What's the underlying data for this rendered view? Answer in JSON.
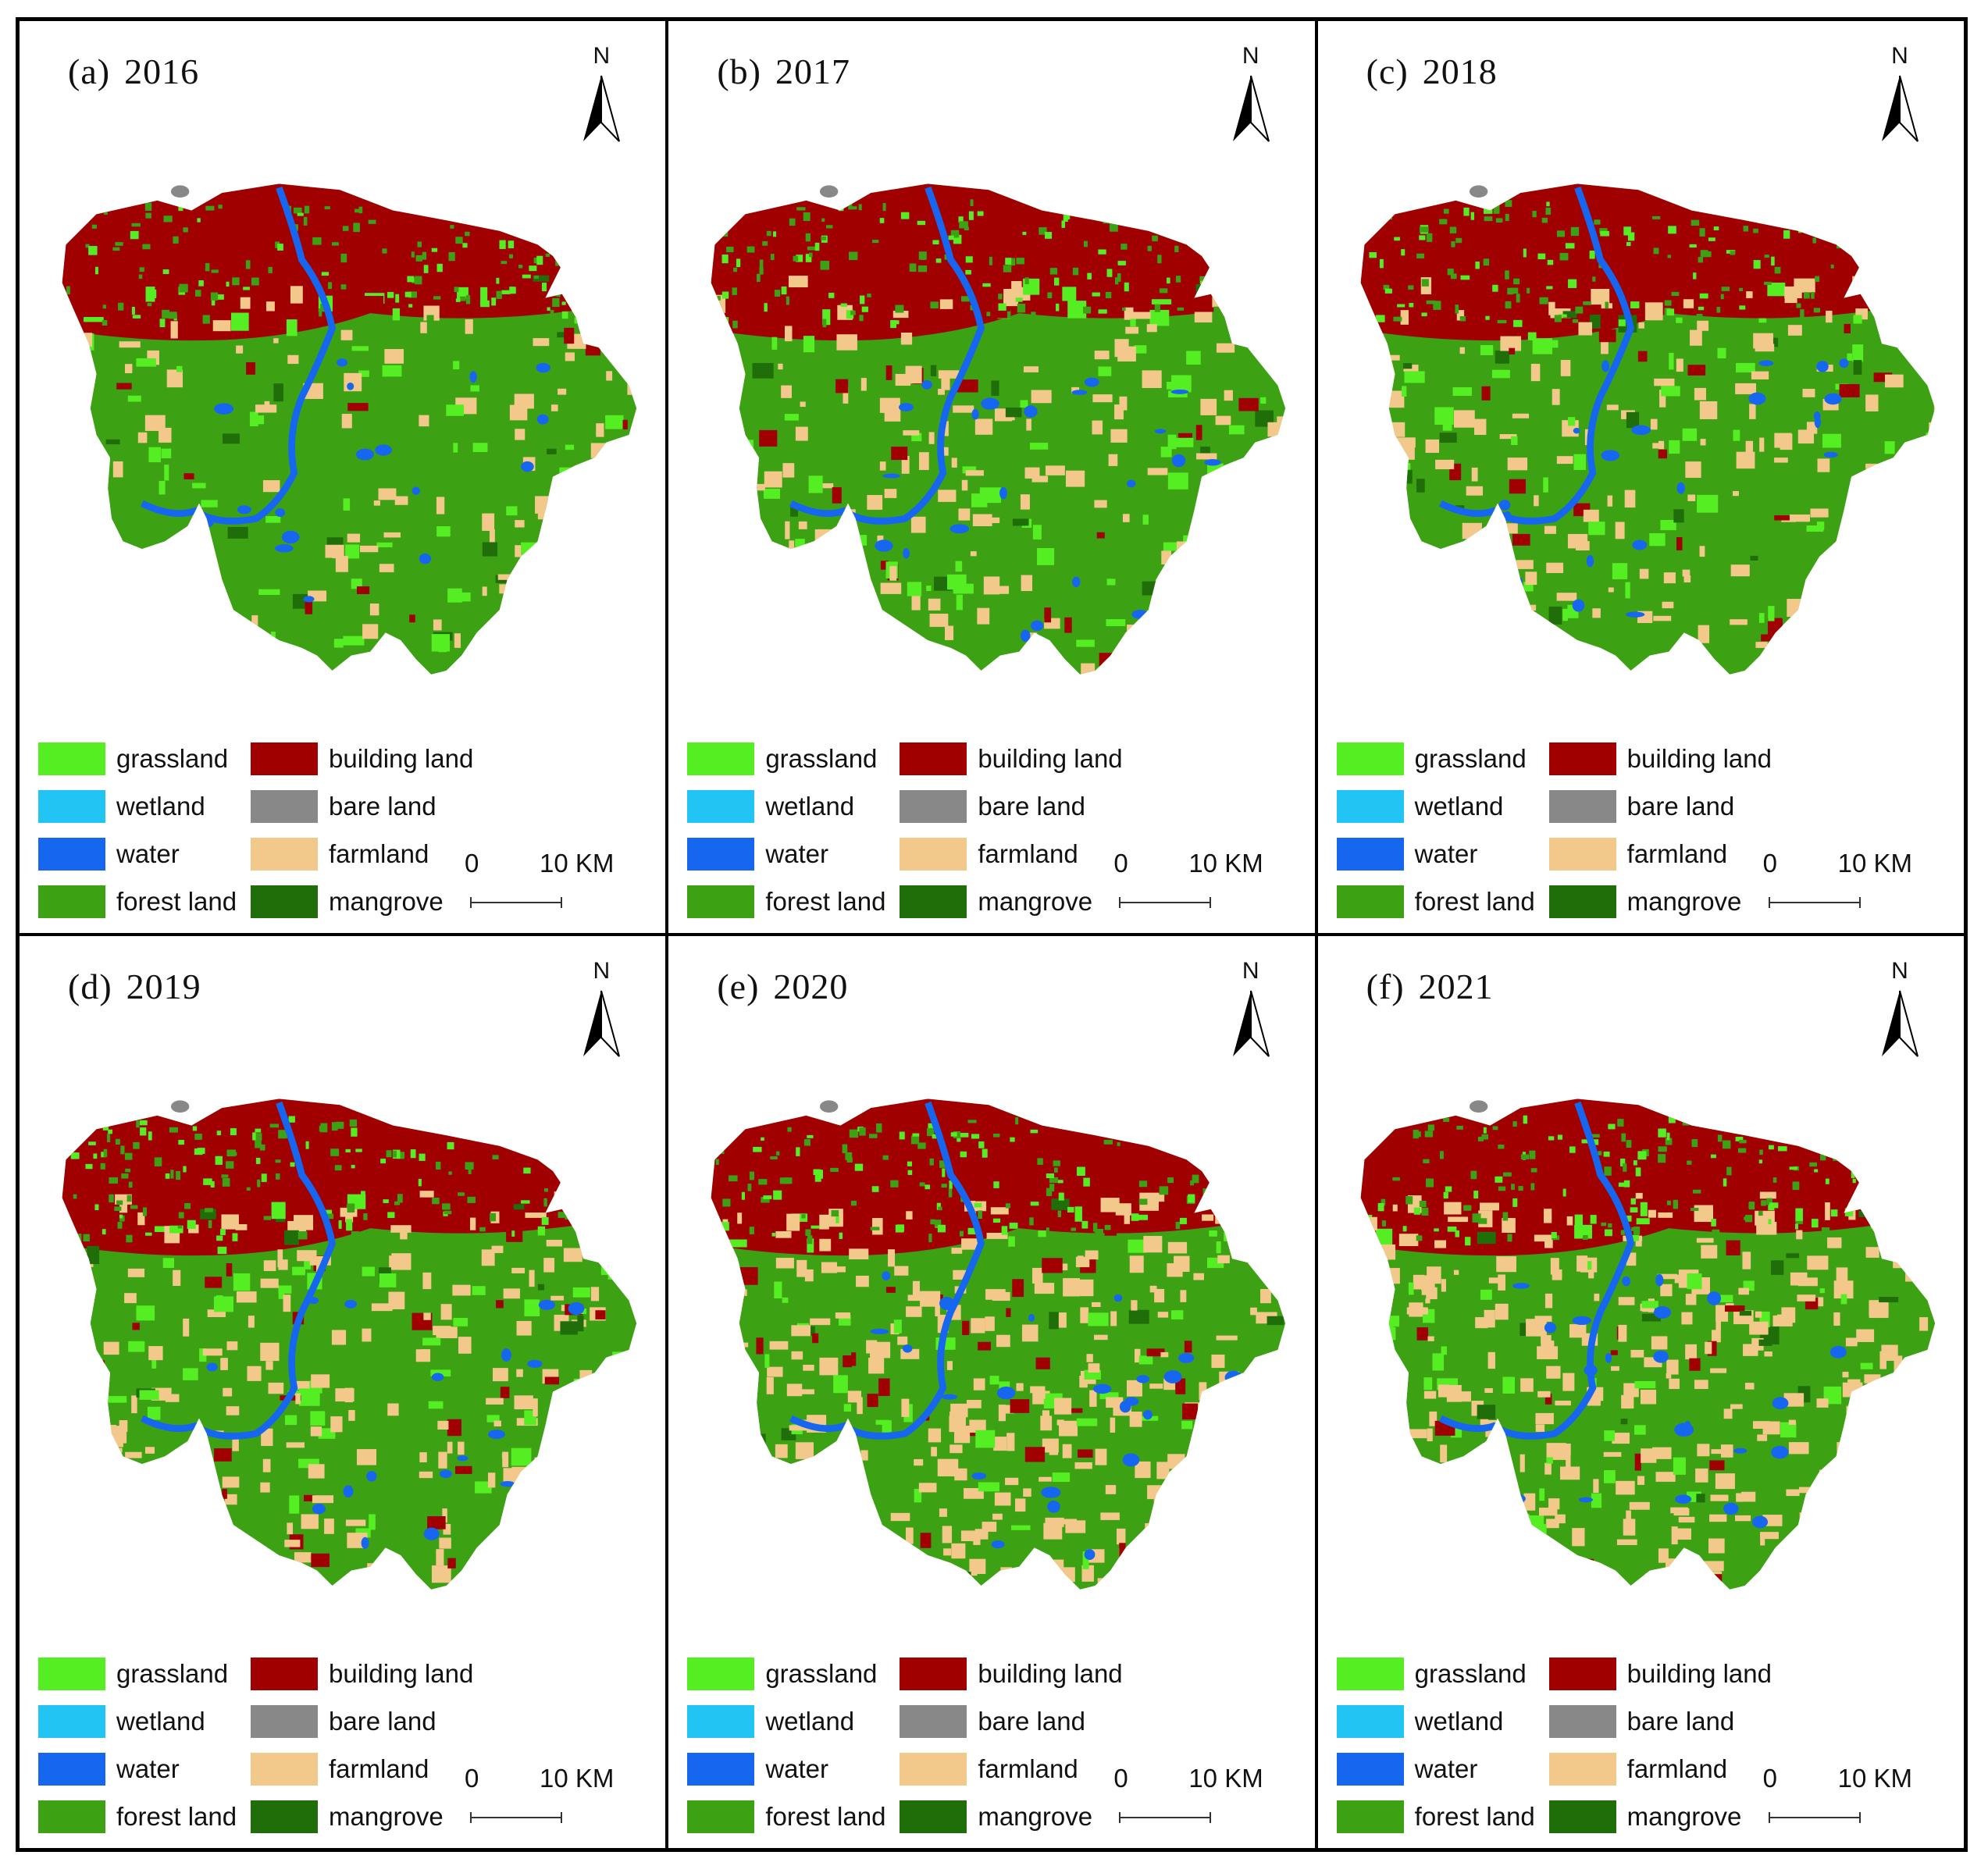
{
  "panels": [
    {
      "label": "(a)",
      "year": "2016"
    },
    {
      "label": "(b)",
      "year": "2017"
    },
    {
      "label": "(c)",
      "year": "2018"
    },
    {
      "label": "(d)",
      "year": "2019"
    },
    {
      "label": "(e)",
      "year": "2020"
    },
    {
      "label": "(f)",
      "year": "2021"
    }
  ],
  "north_label": "N",
  "legend": [
    {
      "label": "grassland",
      "color": "#55ee22"
    },
    {
      "label": "wetland",
      "color": "#22c4f4"
    },
    {
      "label": "water",
      "color": "#1766f0"
    },
    {
      "label": "forest land",
      "color": "#3ca214"
    },
    {
      "label": "building land",
      "color": "#a00000"
    },
    {
      "label": "bare land",
      "color": "#888888"
    },
    {
      "label": "farmland",
      "color": "#f2c98a"
    },
    {
      "label": "mangrove",
      "color": "#1f6e0a"
    }
  ],
  "scale": {
    "start": "0",
    "end": "10 KM"
  }
}
